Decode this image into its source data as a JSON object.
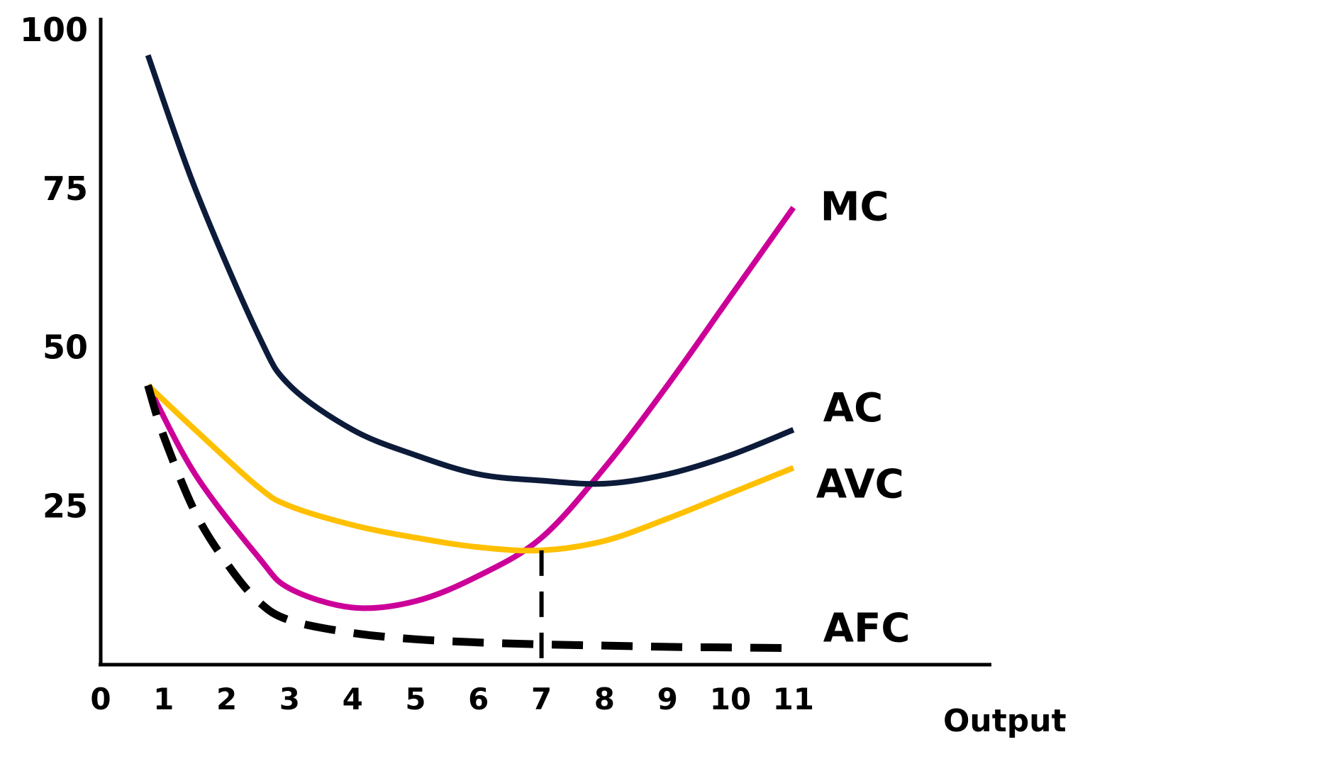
{
  "chart_data": {
    "type": "line",
    "title": "",
    "xlabel": "Output",
    "ylabel": "",
    "xlim": [
      0,
      11
    ],
    "ylim": [
      0,
      100
    ],
    "grid": false,
    "x_ticks": [
      {
        "value": 0,
        "label": "0"
      },
      {
        "value": 1,
        "label": "1"
      },
      {
        "value": 2,
        "label": "2"
      },
      {
        "value": 3,
        "label": "3"
      },
      {
        "value": 4,
        "label": "4"
      },
      {
        "value": 5,
        "label": "5"
      },
      {
        "value": 6,
        "label": "6"
      },
      {
        "value": 7,
        "label": "7"
      },
      {
        "value": 8,
        "label": "8"
      },
      {
        "value": 9,
        "label": "9"
      },
      {
        "value": 10,
        "label": "10"
      },
      {
        "value": 11,
        "label": "11"
      }
    ],
    "y_ticks": [
      {
        "value": 25,
        "label": "25"
      },
      {
        "value": 50,
        "label": "50"
      },
      {
        "value": 75,
        "label": "75"
      },
      {
        "value": 100,
        "label": "100"
      }
    ],
    "series": [
      {
        "name": "MC",
        "color": "#cc0099",
        "dashed": false,
        "points": [
          [
            0.75,
            44
          ],
          [
            1.5,
            30
          ],
          [
            2.5,
            17
          ],
          [
            3,
            12
          ],
          [
            4,
            9
          ],
          [
            5,
            10
          ],
          [
            6,
            14
          ],
          [
            7,
            20
          ],
          [
            8,
            31
          ],
          [
            9,
            44
          ],
          [
            10,
            58
          ],
          [
            11,
            72
          ]
        ]
      },
      {
        "name": "AC",
        "color": "#0d1b3a",
        "dashed": false,
        "points": [
          [
            0.75,
            96
          ],
          [
            1.5,
            75
          ],
          [
            2.5,
            52
          ],
          [
            3,
            44
          ],
          [
            4,
            37
          ],
          [
            5,
            33
          ],
          [
            6,
            30
          ],
          [
            7,
            29
          ],
          [
            8,
            28.5
          ],
          [
            9,
            30
          ],
          [
            10,
            33
          ],
          [
            11,
            37
          ]
        ]
      },
      {
        "name": "AVC",
        "color": "#ffc000",
        "dashed": false,
        "points": [
          [
            0.75,
            44
          ],
          [
            1.5,
            37
          ],
          [
            2.5,
            28
          ],
          [
            3,
            25
          ],
          [
            4,
            22
          ],
          [
            5,
            20
          ],
          [
            6,
            18.5
          ],
          [
            7,
            18
          ],
          [
            8,
            19.5
          ],
          [
            9,
            23
          ],
          [
            10,
            27
          ],
          [
            11,
            31
          ]
        ]
      },
      {
        "name": "AFC",
        "color": "#000000",
        "dashed": true,
        "points": [
          [
            0.75,
            44
          ],
          [
            1,
            36
          ],
          [
            1.5,
            24
          ],
          [
            2,
            16
          ],
          [
            2.5,
            10
          ],
          [
            3,
            7
          ],
          [
            4,
            5
          ],
          [
            5,
            4
          ],
          [
            6,
            3.5
          ],
          [
            7,
            3.2
          ],
          [
            8,
            3
          ],
          [
            9,
            2.8
          ],
          [
            10,
            2.7
          ],
          [
            11,
            2.6
          ]
        ]
      }
    ],
    "annotations": [
      {
        "type": "dashed-vertical",
        "x": 7,
        "y_from": 0,
        "y_to": 18
      }
    ]
  }
}
